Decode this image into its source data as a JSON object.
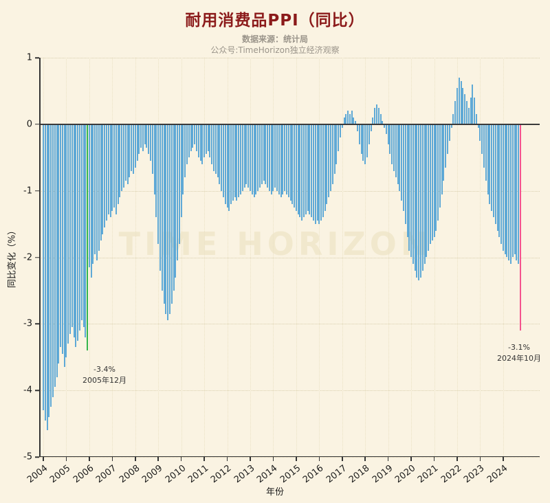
{
  "title": "耐用消费品PPI（同比）",
  "subtitle": {
    "source": "数据来源：统计局",
    "wechat": "公众号:TimeHorizon独立经济观察"
  },
  "watermark": "TIME HORIZON",
  "axes": {
    "ylabel": "同比变化（%）",
    "xlabel": "年份",
    "y_ticks": [
      1,
      0,
      -1,
      -2,
      -3,
      -4,
      -5
    ],
    "x_ticks": [
      "2004",
      "2005",
      "2006",
      "2007",
      "2008",
      "2009",
      "2010",
      "2011",
      "2012",
      "2013",
      "2014",
      "2015",
      "2016",
      "2017",
      "2018",
      "2019",
      "2020",
      "2021",
      "2022",
      "2023",
      "2024"
    ]
  },
  "annotations": {
    "low2005": {
      "value": "-3.4%",
      "date": "2005年12月"
    },
    "latest": {
      "value": "-3.1%",
      "date": "2024年10月"
    }
  },
  "colors": {
    "background": "#faf3e2",
    "bar": "#5fa9d6",
    "highlight_green": "#35b54c",
    "highlight_pink": "#f4538e",
    "title": "#8b1a1a",
    "zero_line": "#3a3a3a"
  },
  "chart_data": {
    "type": "bar",
    "title": "耐用消费品PPI（同比）",
    "ylabel": "同比变化（%）",
    "xlabel": "年份",
    "unit": "%",
    "frequency": "monthly",
    "x_start": "2004-01",
    "x_end": "2024-10",
    "ylim": [
      -5,
      1
    ],
    "grid": "dotted",
    "values": [
      -4.3,
      -4.45,
      -4.6,
      -4.4,
      -4.25,
      -4.1,
      -3.95,
      -3.8,
      -3.6,
      -3.35,
      -3.45,
      -3.65,
      -3.5,
      -3.3,
      -3.15,
      -3.05,
      -3.2,
      -3.35,
      -3.25,
      -3.1,
      -2.95,
      -3.05,
      -3.2,
      -3.4,
      -2.15,
      -2.3,
      -2.1,
      -1.95,
      -2.05,
      -1.9,
      -1.75,
      -1.65,
      -1.55,
      -1.45,
      -1.35,
      -1.4,
      -1.3,
      -1.25,
      -1.35,
      -1.2,
      -1.1,
      -1.0,
      -0.95,
      -0.85,
      -0.9,
      -0.8,
      -0.7,
      -0.75,
      -0.65,
      -0.55,
      -0.45,
      -0.35,
      -0.4,
      -0.3,
      -0.35,
      -0.45,
      -0.55,
      -0.75,
      -1.05,
      -1.4,
      -1.8,
      -2.2,
      -2.5,
      -2.7,
      -2.85,
      -2.95,
      -2.85,
      -2.7,
      -2.5,
      -2.3,
      -2.05,
      -1.8,
      -1.4,
      -1.05,
      -0.8,
      -0.6,
      -0.5,
      -0.4,
      -0.35,
      -0.3,
      -0.4,
      -0.5,
      -0.55,
      -0.6,
      -0.5,
      -0.45,
      -0.4,
      -0.5,
      -0.6,
      -0.7,
      -0.75,
      -0.8,
      -0.9,
      -1.0,
      -1.1,
      -1.2,
      -1.25,
      -1.3,
      -1.2,
      -1.15,
      -1.1,
      -1.15,
      -1.1,
      -1.05,
      -1.0,
      -0.95,
      -0.9,
      -0.95,
      -1.0,
      -1.05,
      -1.1,
      -1.05,
      -1.0,
      -0.95,
      -0.9,
      -0.85,
      -0.9,
      -0.95,
      -1.0,
      -1.05,
      -1.0,
      -0.95,
      -1.0,
      -1.05,
      -1.1,
      -1.05,
      -1.0,
      -1.05,
      -1.1,
      -1.15,
      -1.2,
      -1.25,
      -1.3,
      -1.35,
      -1.4,
      -1.45,
      -1.4,
      -1.35,
      -1.3,
      -1.35,
      -1.4,
      -1.45,
      -1.5,
      -1.45,
      -1.5,
      -1.45,
      -1.4,
      -1.3,
      -1.2,
      -1.1,
      -1.0,
      -0.9,
      -0.75,
      -0.6,
      -0.4,
      -0.2,
      -0.05,
      0.1,
      0.15,
      0.2,
      0.15,
      0.2,
      0.1,
      0.05,
      -0.1,
      -0.3,
      -0.45,
      -0.55,
      -0.6,
      -0.5,
      -0.3,
      -0.1,
      0.1,
      0.25,
      0.3,
      0.25,
      0.15,
      0.05,
      -0.05,
      -0.15,
      -0.3,
      -0.45,
      -0.6,
      -0.7,
      -0.8,
      -0.9,
      -1.0,
      -1.15,
      -1.3,
      -1.5,
      -1.7,
      -1.9,
      -2.0,
      -2.1,
      -2.2,
      -2.3,
      -2.35,
      -2.3,
      -2.2,
      -2.1,
      -2.0,
      -1.9,
      -1.8,
      -1.75,
      -1.7,
      -1.6,
      -1.45,
      -1.25,
      -1.05,
      -0.85,
      -0.65,
      -0.45,
      -0.25,
      -0.05,
      0.15,
      0.35,
      0.55,
      0.7,
      0.65,
      0.55,
      0.45,
      0.35,
      0.25,
      0.4,
      0.6,
      0.4,
      0.15,
      -0.05,
      -0.25,
      -0.45,
      -0.65,
      -0.85,
      -1.05,
      -1.2,
      -1.3,
      -1.4,
      -1.5,
      -1.6,
      -1.7,
      -1.8,
      -1.9,
      -1.95,
      -2.0,
      -2.05,
      -2.1,
      -2.0,
      -1.95,
      -2.05,
      -2.1,
      -3.1
    ],
    "highlights": [
      {
        "index": 23,
        "month": "2005-12",
        "value": -3.4,
        "color": "#35b54c",
        "label": "-3.4%",
        "date_label": "2005年12月"
      },
      {
        "index": 249,
        "month": "2024-10",
        "value": -3.1,
        "color": "#f4538e",
        "label": "-3.1%",
        "date_label": "2024年10月"
      }
    ]
  }
}
